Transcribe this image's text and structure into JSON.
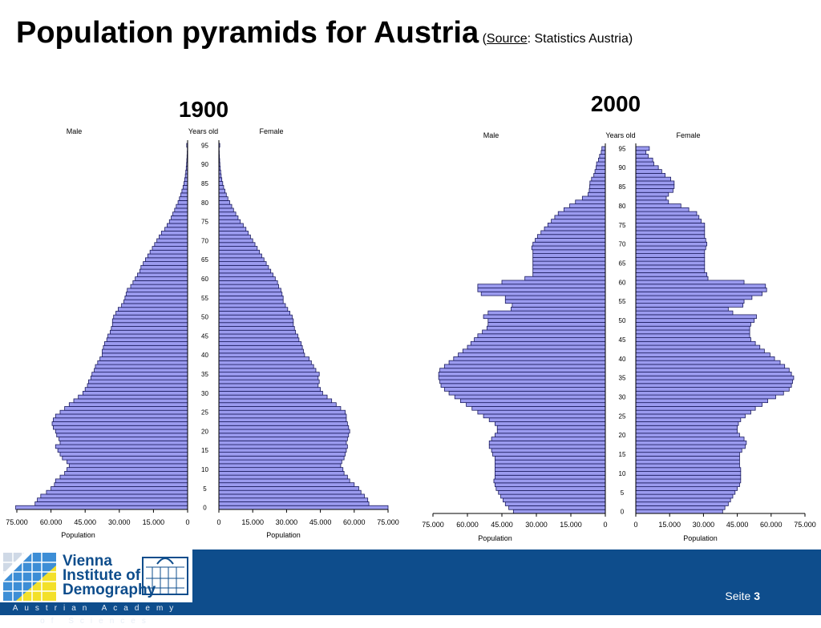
{
  "title": "Population pyramids for Austria",
  "source_prefix": "(",
  "source_word": "Source",
  "source_rest": ": Statistics Austria)",
  "footer": {
    "page_label": "Seite",
    "page_number": "3",
    "logo": {
      "line1": "Vienna",
      "line2": "Institute of",
      "line3": "Demography",
      "strip": "Austrian Academy of Sciences"
    }
  },
  "colors": {
    "bar_fill": "#9b9bef",
    "bar_stroke": "#1b1b5e",
    "footer_bg": "#0e4d8c"
  },
  "chart_data": [
    {
      "type": "bar",
      "orientation": "population-pyramid",
      "title": "1900",
      "left_header": "Male",
      "center_header": "Years old",
      "right_header": "Female",
      "xlabel": "Population",
      "xlim": [
        0,
        75000
      ],
      "x_ticks": [
        "75.000",
        "60.000",
        "45.000",
        "30.000",
        "15.000",
        "0"
      ],
      "x_ticks_female": [
        "0",
        "15.000",
        "30.000",
        "45.000",
        "60.000",
        "75.000"
      ],
      "y_ticks": [
        "0",
        "5",
        "10",
        "15",
        "20",
        "25",
        "30",
        "35",
        "40",
        "45",
        "50",
        "55",
        "60",
        "65",
        "70",
        "75",
        "80",
        "85",
        "90",
        "95"
      ],
      "ages": [
        0,
        1,
        2,
        3,
        4,
        5,
        6,
        7,
        8,
        9,
        10,
        11,
        12,
        13,
        14,
        15,
        16,
        17,
        18,
        19,
        20,
        21,
        22,
        23,
        24,
        25,
        26,
        27,
        28,
        29,
        30,
        31,
        32,
        33,
        34,
        35,
        36,
        37,
        38,
        39,
        40,
        41,
        42,
        43,
        44,
        45,
        46,
        47,
        48,
        49,
        50,
        51,
        52,
        53,
        54,
        55,
        56,
        57,
        58,
        59,
        60,
        61,
        62,
        63,
        64,
        65,
        66,
        67,
        68,
        69,
        70,
        71,
        72,
        73,
        74,
        75,
        76,
        77,
        78,
        79,
        80,
        81,
        82,
        83,
        84,
        85,
        86,
        87,
        88,
        89,
        90,
        91,
        92,
        93,
        94,
        95
      ],
      "male": [
        75500,
        67000,
        66000,
        64500,
        62000,
        60000,
        58500,
        58000,
        56000,
        54000,
        53000,
        52000,
        53000,
        55000,
        56000,
        57000,
        58000,
        56000,
        56500,
        57500,
        58000,
        59000,
        59500,
        59000,
        58000,
        56000,
        54000,
        52000,
        50000,
        48000,
        46000,
        45000,
        44000,
        43500,
        42500,
        42000,
        41000,
        40500,
        39500,
        38500,
        37500,
        37500,
        37000,
        36500,
        35500,
        35000,
        34000,
        33500,
        33000,
        33000,
        32500,
        31500,
        30500,
        29000,
        28000,
        27500,
        27000,
        26500,
        25000,
        24000,
        23000,
        22000,
        21000,
        20500,
        19500,
        18500,
        17500,
        16500,
        15500,
        14500,
        13500,
        12500,
        11500,
        10000,
        9000,
        8000,
        7200,
        6500,
        5700,
        5000,
        4200,
        3600,
        3000,
        2500,
        2000,
        1600,
        1300,
        1000,
        800,
        600,
        450,
        350,
        250,
        180,
        120,
        400
      ],
      "female": [
        75000,
        66500,
        66000,
        64500,
        63000,
        62000,
        60000,
        58000,
        57000,
        55500,
        55000,
        54000,
        54500,
        55500,
        56000,
        56500,
        57000,
        56500,
        57000,
        57500,
        58000,
        57500,
        57000,
        56500,
        56500,
        56000,
        54000,
        52000,
        50000,
        48000,
        46000,
        45000,
        44000,
        44500,
        44000,
        44500,
        43000,
        42000,
        41000,
        40000,
        38000,
        37500,
        37000,
        36500,
        35500,
        35000,
        34000,
        33500,
        33000,
        33000,
        32500,
        31500,
        30500,
        29500,
        28500,
        28500,
        28000,
        27500,
        26500,
        26000,
        25000,
        24000,
        23000,
        22000,
        21000,
        20000,
        19000,
        18000,
        17000,
        16000,
        15000,
        14000,
        13000,
        12000,
        10800,
        9500,
        8500,
        7500,
        6500,
        5700,
        4800,
        4000,
        3300,
        2700,
        2100,
        1700,
        1300,
        1000,
        800,
        600,
        450,
        350,
        250,
        180,
        120,
        400
      ]
    },
    {
      "type": "bar",
      "orientation": "population-pyramid",
      "title": "2000",
      "left_header": "Male",
      "center_header": "Years old",
      "right_header": "Female",
      "xlabel": "Population",
      "xlim": [
        0,
        75000
      ],
      "x_ticks": [
        "75.000",
        "60.000",
        "45.000",
        "30.000",
        "15.000",
        "0"
      ],
      "x_ticks_female": [
        "0",
        "15.000",
        "30.000",
        "45.000",
        "60.000",
        "75.000"
      ],
      "y_ticks": [
        "0",
        "5",
        "10",
        "15",
        "20",
        "25",
        "30",
        "35",
        "40",
        "45",
        "50",
        "55",
        "60",
        "65",
        "70",
        "75",
        "80",
        "85",
        "90",
        "95"
      ],
      "ages": [
        0,
        1,
        2,
        3,
        4,
        5,
        6,
        7,
        8,
        9,
        10,
        11,
        12,
        13,
        14,
        15,
        16,
        17,
        18,
        19,
        20,
        21,
        22,
        23,
        24,
        25,
        26,
        27,
        28,
        29,
        30,
        31,
        32,
        33,
        34,
        35,
        36,
        37,
        38,
        39,
        40,
        41,
        42,
        43,
        44,
        45,
        46,
        47,
        48,
        49,
        50,
        51,
        52,
        53,
        54,
        55,
        56,
        57,
        58,
        59,
        60,
        61,
        62,
        63,
        64,
        65,
        66,
        67,
        68,
        69,
        70,
        71,
        72,
        73,
        74,
        75,
        76,
        77,
        78,
        79,
        80,
        81,
        82,
        83,
        84,
        85,
        86,
        87,
        88,
        89,
        90,
        91,
        92,
        93,
        94,
        95
      ],
      "male": [
        40000,
        42000,
        43500,
        44500,
        45500,
        46500,
        47500,
        48000,
        48500,
        48000,
        48000,
        48000,
        48000,
        48000,
        48000,
        49000,
        49500,
        50500,
        50500,
        49500,
        48000,
        47000,
        47000,
        48000,
        50500,
        53000,
        55500,
        58000,
        60500,
        63000,
        65500,
        68000,
        70000,
        71500,
        72000,
        72500,
        72500,
        72000,
        70000,
        68000,
        66000,
        64000,
        62000,
        60000,
        58500,
        57000,
        55500,
        53500,
        51500,
        51000,
        51000,
        53000,
        51000,
        41000,
        40500,
        43500,
        43500,
        54000,
        55500,
        55500,
        45000,
        35000,
        31500,
        31500,
        31500,
        31500,
        31500,
        31500,
        31500,
        32000,
        31500,
        30500,
        29500,
        28000,
        26500,
        25000,
        23500,
        22000,
        20500,
        18000,
        15500,
        13000,
        10000,
        7500,
        7000,
        6800,
        6700,
        6000,
        5000,
        4500,
        4000,
        3800,
        3000,
        2500,
        1800,
        1500
      ],
      "female": [
        38500,
        39500,
        41000,
        42000,
        43000,
        44000,
        45000,
        46000,
        46500,
        46500,
        46500,
        46500,
        46000,
        46000,
        46000,
        46000,
        47000,
        48500,
        49000,
        48000,
        46000,
        45000,
        45000,
        45500,
        46500,
        48500,
        51000,
        53000,
        56000,
        58500,
        62000,
        65500,
        68000,
        69000,
        69500,
        70000,
        69000,
        68000,
        66000,
        64000,
        61500,
        59500,
        57000,
        55000,
        53000,
        51000,
        50500,
        50500,
        50500,
        51000,
        52500,
        53500,
        43000,
        41000,
        47500,
        48000,
        51500,
        56000,
        58000,
        57500,
        48000,
        32000,
        31500,
        30500,
        30500,
        30500,
        30500,
        30500,
        30500,
        31000,
        31500,
        31000,
        30500,
        30500,
        30500,
        30500,
        29000,
        28000,
        27000,
        23500,
        20000,
        14500,
        13500,
        14500,
        16500,
        17000,
        17000,
        15500,
        13000,
        11500,
        10000,
        8000,
        7500,
        5500,
        4500,
        6000
      ]
    }
  ]
}
